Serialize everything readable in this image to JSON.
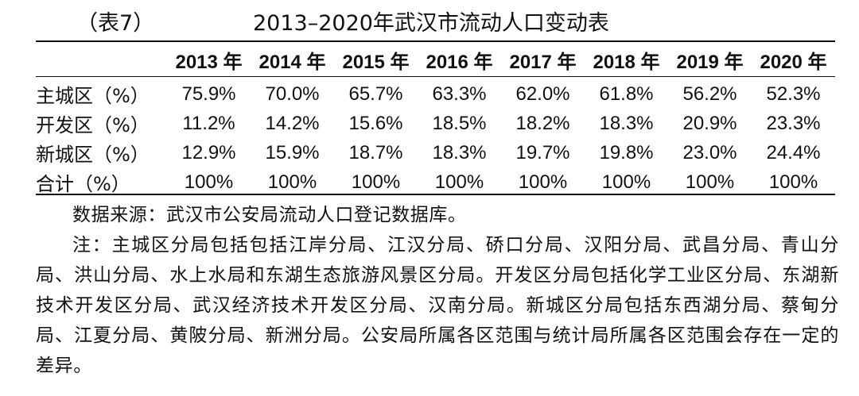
{
  "caption": {
    "label": "（表7）",
    "title": "2013–2020年武汉市流动人口变动表"
  },
  "table": {
    "headers": [
      "",
      "2013 年",
      "2014 年",
      "2015 年",
      "2016 年",
      "2017 年",
      "2018 年",
      "2019 年",
      "2020 年"
    ],
    "rows": [
      {
        "label": "主城区（%）",
        "values": [
          "75.9%",
          "70.0%",
          "65.7%",
          "63.3%",
          "62.0%",
          "61.8%",
          "56.2%",
          "52.3%"
        ]
      },
      {
        "label": "开发区（%）",
        "values": [
          "11.2%",
          "14.2%",
          "15.6%",
          "18.5%",
          "18.2%",
          "18.3%",
          "20.9%",
          "23.3%"
        ]
      },
      {
        "label": "新城区（%）",
        "values": [
          "12.9%",
          "15.9%",
          "18.7%",
          "18.3%",
          "19.7%",
          "19.8%",
          "23.0%",
          "24.4%"
        ]
      },
      {
        "label": "合计（%）",
        "values": [
          "100%",
          "100%",
          "100%",
          "100%",
          "100%",
          "100%",
          "100%",
          "100%"
        ]
      }
    ]
  },
  "notes": {
    "source": "数据来源：武汉市公安局流动人口登记数据库。",
    "note": "注：主城区分局包括包括江岸分局、江汉分局、硚口分局、汉阳分局、武昌分局、青山分局、洪山分局、水上水局和东湖生态旅游风景区分局。开发区分局包括化学工业区分局、东湖新技术开发区分局、武汉经济技术开发区分局、汉南分局。新城区分局包括东西湖分局、蔡甸分局、江夏分局、黄陂分局、新洲分局。公安局所属各区范围与统计局所属各区范围会存在一定的差异。"
  }
}
